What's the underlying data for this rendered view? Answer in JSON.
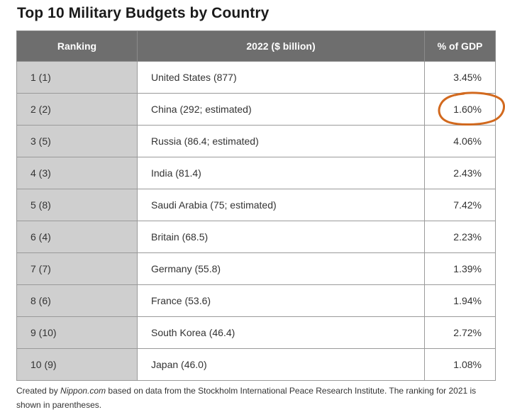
{
  "title": "Top 10 Military Budgets by Country",
  "table": {
    "headers": [
      "Ranking",
      "2022 ($ billion)",
      "% of GDP"
    ],
    "rows": [
      {
        "ranking": "1 (1)",
        "country": "United States (877)",
        "gdp": "3.45%"
      },
      {
        "ranking": "2 (2)",
        "country": "China (292; estimated)",
        "gdp": "1.60%"
      },
      {
        "ranking": "3 (5)",
        "country": "Russia (86.4; estimated)",
        "gdp": "4.06%"
      },
      {
        "ranking": "4 (3)",
        "country": "India (81.4)",
        "gdp": "2.43%"
      },
      {
        "ranking": "5 (8)",
        "country": "Saudi Arabia (75; estimated)",
        "gdp": "7.42%"
      },
      {
        "ranking": "6 (4)",
        "country": "Britain (68.5)",
        "gdp": "2.23%"
      },
      {
        "ranking": "7 (7)",
        "country": "Germany (55.8)",
        "gdp": "1.39%"
      },
      {
        "ranking": "8 (6)",
        "country": "France (53.6)",
        "gdp": "1.94%"
      },
      {
        "ranking": "9 (10)",
        "country": "South Korea (46.4)",
        "gdp": "2.72%"
      },
      {
        "ranking": "10 (9)",
        "country": "Japan (46.0)",
        "gdp": "1.08%"
      }
    ]
  },
  "footnote": {
    "prefix": "Created by ",
    "site": "Nippon.com",
    "rest": " based on data from the Stockholm International Peace Research Institute. The ranking for 2021 is shown in parentheses."
  },
  "annotation": {
    "circled_value": "1.60%",
    "color": "#d2691e"
  },
  "colors": {
    "header_bg": "#6e6e6e",
    "rank_col_bg": "#cfcfcf",
    "border": "#9a9a9a"
  }
}
